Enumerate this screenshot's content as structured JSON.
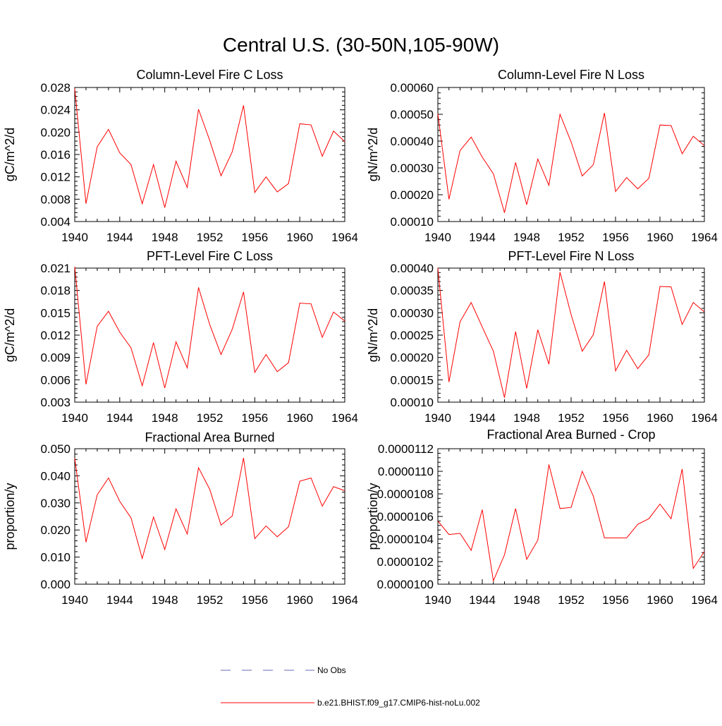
{
  "title": "Central U.S. (30-50N,105-90W)",
  "colors": {
    "model_line": "#ff0000",
    "obs_line": "#6a6ab8",
    "axis": "#000000"
  },
  "legend": {
    "items": [
      {
        "label": "No Obs",
        "style": "dashed",
        "color": "#6a6ab8"
      },
      {
        "label": "b.e21.BHIST.f09_g17.CMIP6-hist-noLu.002",
        "style": "solid",
        "color": "#ff0000"
      }
    ]
  },
  "chart_data": [
    {
      "type": "line",
      "title": "Column-Level Fire C Loss",
      "ylabel": "gC/m^2/d",
      "xlim": [
        1940,
        1964
      ],
      "ylim": [
        0.004,
        0.028
      ],
      "xticks": [
        "1940",
        "1944",
        "1948",
        "1952",
        "1956",
        "1960",
        "1964"
      ],
      "yticks": [
        "0.004",
        "0.008",
        "0.012",
        "0.016",
        "0.020",
        "0.024",
        "0.028"
      ],
      "x": [
        1940,
        1941,
        1942,
        1943,
        1944,
        1945,
        1946,
        1947,
        1948,
        1949,
        1950,
        1951,
        1952,
        1953,
        1954,
        1955,
        1956,
        1957,
        1958,
        1959,
        1960,
        1961,
        1962,
        1963,
        1964
      ],
      "series": [
        {
          "values": [
            0.0278,
            0.0072,
            0.0174,
            0.0205,
            0.0163,
            0.0142,
            0.0072,
            0.0142,
            0.0065,
            0.0148,
            0.0101,
            0.0241,
            0.0185,
            0.0122,
            0.0165,
            0.0248,
            0.0092,
            0.012,
            0.0093,
            0.0108,
            0.0215,
            0.0213,
            0.0157,
            0.0202,
            0.0183
          ]
        }
      ]
    },
    {
      "type": "line",
      "title": "Column-Level Fire N Loss",
      "ylabel": "gN/m^2/d",
      "xlim": [
        1940,
        1964
      ],
      "ylim": [
        0.0001,
        0.0006
      ],
      "xticks": [
        "1940",
        "1944",
        "1948",
        "1952",
        "1956",
        "1960",
        "1964"
      ],
      "yticks": [
        "0.00010",
        "0.00020",
        "0.00030",
        "0.00040",
        "0.00050",
        "0.00060"
      ],
      "x": [
        1940,
        1941,
        1942,
        1943,
        1944,
        1945,
        1946,
        1947,
        1948,
        1949,
        1950,
        1951,
        1952,
        1953,
        1954,
        1955,
        1956,
        1957,
        1958,
        1959,
        1960,
        1961,
        1962,
        1963,
        1964
      ],
      "series": [
        {
          "values": [
            0.000502,
            0.000183,
            0.000365,
            0.000415,
            0.00034,
            0.000278,
            0.000133,
            0.00032,
            0.000163,
            0.000333,
            0.000235,
            0.0005,
            0.000397,
            0.00027,
            0.000312,
            0.000505,
            0.000212,
            0.000264,
            0.000222,
            0.000261,
            0.00046,
            0.000458,
            0.000353,
            0.000418,
            0.000383
          ]
        }
      ]
    },
    {
      "type": "line",
      "title": "PFT-Level Fire C Loss",
      "ylabel": "gC/m^2/d",
      "xlim": [
        1940,
        1964
      ],
      "ylim": [
        0.003,
        0.021
      ],
      "xticks": [
        "1940",
        "1944",
        "1948",
        "1952",
        "1956",
        "1960",
        "1964"
      ],
      "yticks": [
        "0.003",
        "0.006",
        "0.009",
        "0.012",
        "0.015",
        "0.018",
        "0.021"
      ],
      "x": [
        1940,
        1941,
        1942,
        1943,
        1944,
        1945,
        1946,
        1947,
        1948,
        1949,
        1950,
        1951,
        1952,
        1953,
        1954,
        1955,
        1956,
        1957,
        1958,
        1959,
        1960,
        1961,
        1962,
        1963,
        1964
      ],
      "series": [
        {
          "values": [
            0.0212,
            0.0054,
            0.0132,
            0.0152,
            0.0124,
            0.0103,
            0.0052,
            0.011,
            0.0049,
            0.0111,
            0.0076,
            0.0184,
            0.0134,
            0.0094,
            0.0128,
            0.0178,
            0.007,
            0.0094,
            0.0071,
            0.0083,
            0.0163,
            0.0162,
            0.0117,
            0.0151,
            0.0139
          ]
        }
      ]
    },
    {
      "type": "line",
      "title": "PFT-Level Fire N Loss",
      "ylabel": "gN/m^2/d",
      "xlim": [
        1940,
        1964
      ],
      "ylim": [
        0.0001,
        0.0004
      ],
      "xticks": [
        "1940",
        "1944",
        "1948",
        "1952",
        "1956",
        "1960",
        "1964"
      ],
      "yticks": [
        "0.00010",
        "0.00015",
        "0.00020",
        "0.00025",
        "0.00030",
        "0.00035",
        "0.00040"
      ],
      "x": [
        1940,
        1941,
        1942,
        1943,
        1944,
        1945,
        1946,
        1947,
        1948,
        1949,
        1950,
        1951,
        1952,
        1953,
        1954,
        1955,
        1956,
        1957,
        1958,
        1959,
        1960,
        1961,
        1962,
        1963,
        1964
      ],
      "series": [
        {
          "values": [
            0.0004,
            0.000145,
            0.00028,
            0.000323,
            0.000268,
            0.000214,
            0.00011,
            0.000258,
            0.000131,
            0.000262,
            0.000185,
            0.000391,
            0.000296,
            0.000214,
            0.000251,
            0.00037,
            0.00017,
            0.000216,
            0.000175,
            0.000206,
            0.000359,
            0.000358,
            0.000274,
            0.000323,
            0.000302
          ]
        }
      ]
    },
    {
      "type": "line",
      "title": "Fractional Area Burned",
      "ylabel": "proportion/y",
      "xlim": [
        1940,
        1964
      ],
      "ylim": [
        0.0,
        0.05
      ],
      "xticks": [
        "1940",
        "1944",
        "1948",
        "1952",
        "1956",
        "1960",
        "1964"
      ],
      "yticks": [
        "0.000",
        "0.010",
        "0.020",
        "0.030",
        "0.040",
        "0.050"
      ],
      "x": [
        1940,
        1941,
        1942,
        1943,
        1944,
        1945,
        1946,
        1947,
        1948,
        1949,
        1950,
        1951,
        1952,
        1953,
        1954,
        1955,
        1956,
        1957,
        1958,
        1959,
        1960,
        1961,
        1962,
        1963,
        1964
      ],
      "series": [
        {
          "values": [
            0.0465,
            0.0155,
            0.033,
            0.0392,
            0.0306,
            0.0245,
            0.0095,
            0.0248,
            0.0128,
            0.0278,
            0.0185,
            0.043,
            0.035,
            0.0218,
            0.0252,
            0.0466,
            0.0168,
            0.0215,
            0.0175,
            0.0212,
            0.038,
            0.0392,
            0.0288,
            0.036,
            0.0345
          ]
        }
      ]
    },
    {
      "type": "line",
      "title": "Fractional Area Burned - Crop",
      "ylabel": "proportion/y",
      "xlim": [
        1940,
        1964
      ],
      "ylim": [
        1e-05,
        1.12e-05
      ],
      "xticks": [
        "1940",
        "1944",
        "1948",
        "1952",
        "1956",
        "1960",
        "1964"
      ],
      "yticks": [
        "0.0000100",
        "0.0000102",
        "0.0000104",
        "0.0000106",
        "0.0000108",
        "0.0000110",
        "0.0000112"
      ],
      "x": [
        1940,
        1941,
        1942,
        1943,
        1944,
        1945,
        1946,
        1947,
        1948,
        1949,
        1950,
        1951,
        1952,
        1953,
        1954,
        1955,
        1956,
        1957,
        1958,
        1959,
        1960,
        1961,
        1962,
        1963,
        1964
      ],
      "series": [
        {
          "values": [
            1.056e-05,
            1.044e-05,
            1.045e-05,
            1.03e-05,
            1.066e-05,
            1.003e-05,
            1.026e-05,
            1.067e-05,
            1.022e-05,
            1.039e-05,
            1.106e-05,
            1.067e-05,
            1.068e-05,
            1.1e-05,
            1.078e-05,
            1.041e-05,
            1.041e-05,
            1.041e-05,
            1.053e-05,
            1.058e-05,
            1.071e-05,
            1.058e-05,
            1.102e-05,
            1.014e-05,
            1.029e-05
          ]
        }
      ]
    }
  ]
}
